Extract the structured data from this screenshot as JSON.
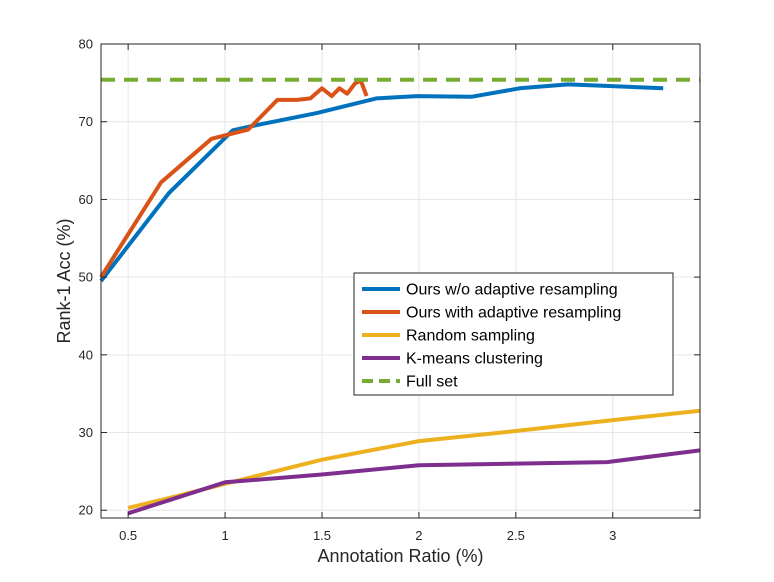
{
  "chart_data": {
    "type": "line",
    "title": "",
    "xlabel": "Annotation Ratio (%)",
    "ylabel": "Rank-1 Acc (%)",
    "xlim": [
      0.36,
      3.45
    ],
    "ylim": [
      19,
      80
    ],
    "xticks": [
      0.5,
      1,
      1.5,
      2,
      2.5,
      3
    ],
    "xtick_labels": [
      "0.5",
      "1",
      "1.5",
      "2",
      "2.5",
      "3"
    ],
    "yticks": [
      20,
      30,
      40,
      50,
      60,
      70,
      80
    ],
    "ytick_labels": [
      "20",
      "30",
      "40",
      "50",
      "60",
      "70",
      "80"
    ],
    "grid": true,
    "legend_position": "center-right",
    "series": [
      {
        "name": "Ours w/o adaptive resampling",
        "color": "#0072BD",
        "style": "solid",
        "x": [
          0.36,
          0.71,
          1.04,
          1.17,
          1.47,
          1.78,
          1.99,
          2.27,
          2.52,
          2.77,
          2.98,
          3.26
        ],
        "y": [
          49.5,
          60.8,
          68.9,
          69.6,
          71.1,
          73.0,
          73.3,
          73.2,
          74.3,
          74.8,
          74.6,
          74.3
        ]
      },
      {
        "name": "Ours with adaptive resampling",
        "color": "#D95319",
        "style": "solid",
        "x": [
          0.36,
          0.67,
          0.93,
          1.12,
          1.27,
          1.37,
          1.44,
          1.5,
          1.55,
          1.59,
          1.63,
          1.67,
          1.7,
          1.73
        ],
        "y": [
          50.0,
          62.2,
          67.8,
          69.0,
          72.8,
          72.8,
          73.0,
          74.3,
          73.3,
          74.3,
          73.6,
          74.9,
          75.3,
          73.3
        ]
      },
      {
        "name": "Random sampling",
        "color": "#EDB120",
        "style": "solid",
        "x": [
          0.5,
          0.75,
          1.0,
          1.5,
          2.0,
          2.5,
          3.0,
          3.45
        ],
        "y": [
          20.3,
          21.8,
          23.4,
          26.5,
          28.9,
          30.2,
          31.6,
          32.8
        ]
      },
      {
        "name": "K-means clustering",
        "color": "#7E2F8E",
        "style": "solid",
        "x": [
          0.5,
          1.0,
          1.5,
          2.0,
          2.5,
          2.97,
          3.45
        ],
        "y": [
          19.6,
          23.6,
          24.6,
          25.8,
          26.0,
          26.2,
          27.7
        ]
      },
      {
        "name": "Full set",
        "color": "#77AC30",
        "style": "dashed",
        "x": [
          0.36,
          3.45
        ],
        "y": [
          75.4,
          75.4
        ]
      }
    ]
  }
}
